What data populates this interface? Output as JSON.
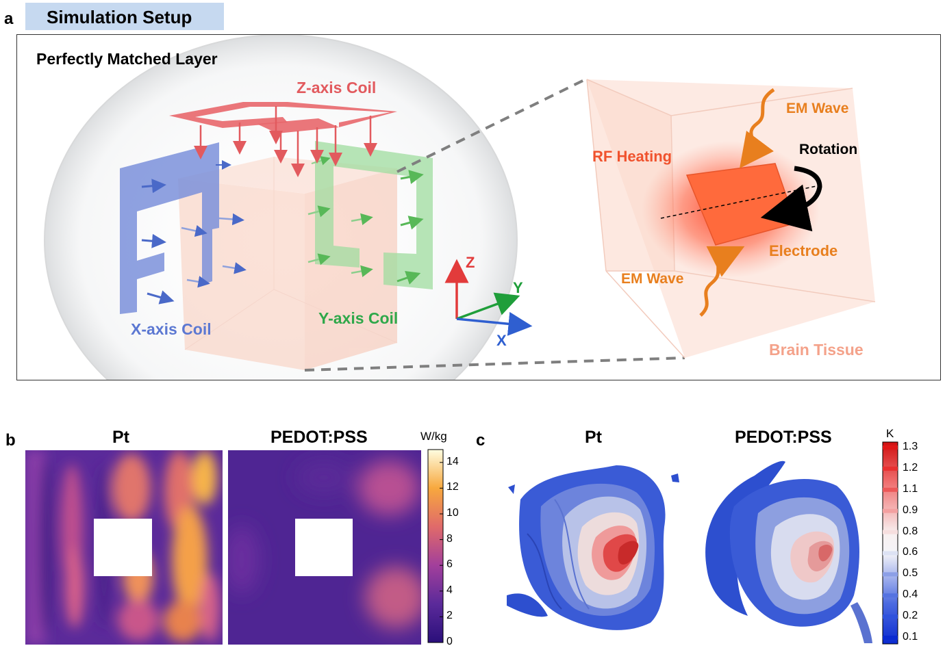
{
  "panel_a": {
    "letter": "a",
    "title": "Simulation Setup",
    "labels": {
      "pml": "Perfectly Matched Layer",
      "z_coil": "Z-axis Coil",
      "x_coil": "X-axis Coil",
      "y_coil": "Y-axis Coil",
      "axis_z": "Z",
      "axis_y": "Y",
      "axis_x": "X",
      "em_wave_top": "EM Wave",
      "em_wave_bottom": "EM Wave",
      "rf_heating": "RF Heating",
      "rotation": "Rotation",
      "electrode": "Electrode",
      "brain_tissue": "Brain Tissue"
    },
    "colors": {
      "x_coil": "#6f86d6",
      "y_coil": "#88cf88",
      "z_coil": "#e8676b",
      "em_wave": "#e87f1e",
      "rf_heating": "#f0522d",
      "brain_tissue": "#f4a28a"
    }
  },
  "panel_b": {
    "letter": "b",
    "titles": [
      "Pt",
      "PEDOT:PSS"
    ],
    "colorbar": {
      "unit": "W/kg",
      "ticks": [
        "14",
        "12",
        "10",
        "8",
        "6",
        "4",
        "2",
        "0"
      ],
      "range": [
        0,
        15
      ]
    }
  },
  "panel_c": {
    "letter": "c",
    "titles": [
      "Pt",
      "PEDOT:PSS"
    ],
    "colorbar": {
      "unit": "K",
      "ticks": [
        "1.3",
        "1.2",
        "1.1",
        "0.9",
        "0.8",
        "0.6",
        "0.5",
        "0.4",
        "0.2",
        "0.1"
      ]
    }
  }
}
